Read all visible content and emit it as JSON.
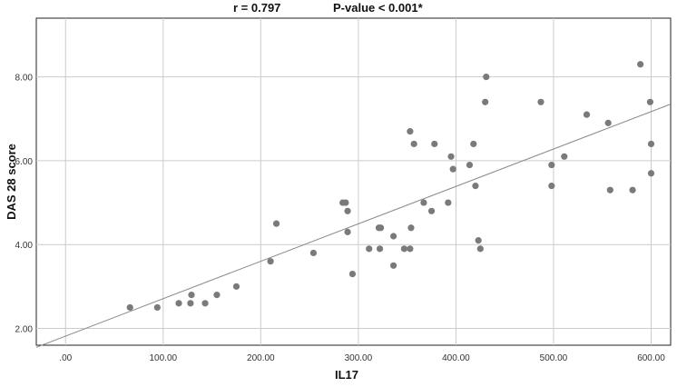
{
  "chart_data": {
    "type": "scatter",
    "title": "",
    "annotations": {
      "correlation": "r = 0.797",
      "pvalue": "P-value < 0.001*"
    },
    "xlabel": "IL17",
    "ylabel": "DAS 28 score",
    "xlim": [
      -30,
      620
    ],
    "ylim": [
      1.6,
      9.4
    ],
    "x_ticks": [
      0,
      100,
      200,
      300,
      400,
      500,
      600
    ],
    "x_tick_labels": [
      ".00",
      "100.00",
      "200.00",
      "300.00",
      "400.00",
      "500.00",
      "600.00"
    ],
    "y_ticks": [
      2,
      4,
      6,
      8
    ],
    "y_tick_labels": [
      "2.00",
      "4.00",
      "6.00",
      "8.00"
    ],
    "grid": true,
    "point_color": "#7a7a7a",
    "fit_line": {
      "x": [
        -30,
        620
      ],
      "y": [
        1.55,
        7.35
      ],
      "color": "#888888"
    },
    "points": [
      [
        66,
        2.5
      ],
      [
        94,
        2.5
      ],
      [
        116,
        2.6
      ],
      [
        128,
        2.6
      ],
      [
        129,
        2.8
      ],
      [
        143,
        2.6
      ],
      [
        155,
        2.8
      ],
      [
        175,
        3.0
      ],
      [
        210,
        3.6
      ],
      [
        216,
        4.5
      ],
      [
        254,
        3.8
      ],
      [
        284,
        5.0
      ],
      [
        287,
        5.0
      ],
      [
        289,
        4.8
      ],
      [
        289,
        4.3
      ],
      [
        294,
        3.3
      ],
      [
        311,
        3.9
      ],
      [
        321,
        4.4
      ],
      [
        323,
        4.4
      ],
      [
        322,
        3.9
      ],
      [
        336,
        4.2
      ],
      [
        336,
        3.5
      ],
      [
        347,
        3.9
      ],
      [
        353,
        3.9
      ],
      [
        353,
        6.7
      ],
      [
        354,
        4.4
      ],
      [
        357,
        6.4
      ],
      [
        367,
        5.0
      ],
      [
        375,
        4.8
      ],
      [
        378,
        6.4
      ],
      [
        392,
        5.0
      ],
      [
        395,
        6.1
      ],
      [
        397,
        5.8
      ],
      [
        414,
        5.9
      ],
      [
        418,
        6.4
      ],
      [
        420,
        5.4
      ],
      [
        423,
        4.1
      ],
      [
        425,
        3.9
      ],
      [
        430,
        7.4
      ],
      [
        431,
        8.0
      ],
      [
        487,
        7.4
      ],
      [
        498,
        5.9
      ],
      [
        498,
        5.4
      ],
      [
        511,
        6.1
      ],
      [
        534,
        7.1
      ],
      [
        556,
        6.9
      ],
      [
        558,
        5.3
      ],
      [
        581,
        5.3
      ],
      [
        589,
        8.3
      ],
      [
        599,
        7.4
      ],
      [
        600,
        6.4
      ],
      [
        600,
        5.7
      ]
    ]
  }
}
